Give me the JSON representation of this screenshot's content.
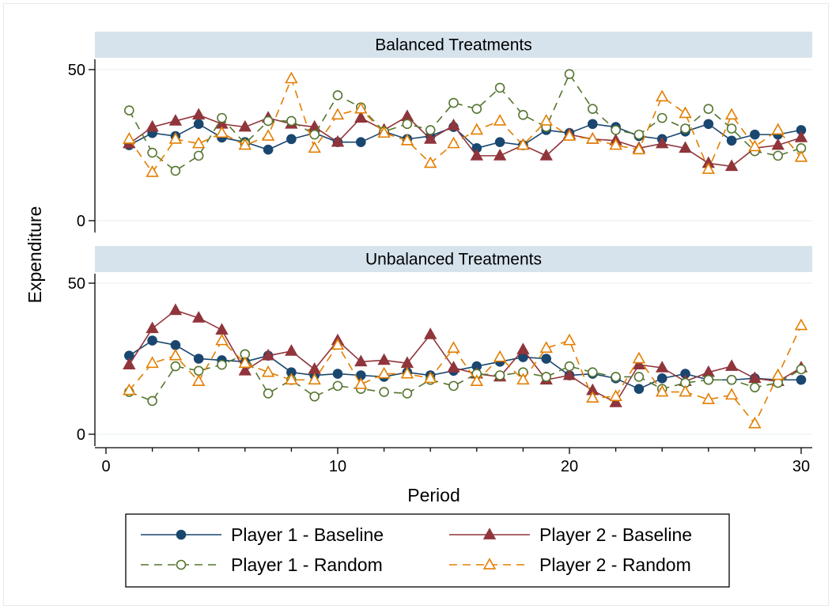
{
  "chart_data": {
    "type": "line",
    "ylabel": "Expenditure",
    "xlabel": "Period",
    "xlim": [
      0,
      30
    ],
    "x_ticks": [
      0,
      10,
      20,
      30
    ],
    "ylim": [
      0,
      50
    ],
    "y_ticks": [
      0,
      50
    ],
    "grid": "horizontal",
    "legend_position": "bottom",
    "series_styles": [
      {
        "name": "Player 1 - Baseline",
        "color": "#1a476f",
        "dash": "solid",
        "marker": "circle-filled"
      },
      {
        "name": "Player 2 - Baseline",
        "color": "#90353b",
        "dash": "solid",
        "marker": "triangle-filled"
      },
      {
        "name": "Player 1 - Random",
        "color": "#55752f",
        "dash": "dashed",
        "marker": "circle-open"
      },
      {
        "name": "Player 2 - Random",
        "color": "#e37e00",
        "dash": "dashed",
        "marker": "triangle-open"
      }
    ],
    "panels": [
      {
        "title": "Balanced Treatments",
        "x": [
          1,
          2,
          3,
          4,
          5,
          6,
          7,
          8,
          9,
          10,
          11,
          12,
          13,
          14,
          15,
          16,
          17,
          18,
          19,
          20,
          21,
          22,
          23,
          24,
          25,
          26,
          27,
          28,
          29,
          30
        ],
        "series": [
          {
            "name": "Player 1 - Baseline",
            "values": [
              25,
              29,
              28,
              32,
              27.5,
              26,
              23.5,
              27,
              29,
              26,
              26,
              29.5,
              27,
              28,
              31,
              24,
              26,
              25,
              30,
              29,
              32,
              31,
              28,
              27,
              29.5,
              32,
              26.5,
              28.5,
              28.5,
              30
            ]
          },
          {
            "name": "Player 2 - Baseline",
            "values": [
              25.5,
              31,
              33,
              35,
              32,
              31,
              34,
              32,
              31,
              26,
              34,
              30,
              34.5,
              27,
              31.5,
              21.5,
              21.5,
              25,
              21.5,
              28.5,
              27,
              26.5,
              24,
              25.5,
              24,
              19,
              18,
              24,
              25,
              27.5
            ]
          },
          {
            "name": "Player 1 - Random",
            "values": [
              36.5,
              22.5,
              16.5,
              21.5,
              34,
              25.5,
              33,
              33,
              28.5,
              41.5,
              37.5,
              29.5,
              32,
              30,
              39,
              37,
              44,
              35,
              31,
              48.5,
              37,
              30,
              28.5,
              34,
              30.5,
              37,
              30.5,
              23,
              21.5,
              24
            ]
          },
          {
            "name": "Player 2 - Random",
            "values": [
              27,
              16,
              27,
              25.5,
              29,
              25,
              28,
              47,
              24,
              35,
              37,
              29,
              26.5,
              19,
              25.5,
              30,
              33,
              25,
              33,
              28,
              27,
              25,
              23.5,
              41,
              35.5,
              17,
              35,
              24.5,
              30,
              21
            ]
          }
        ]
      },
      {
        "title": "Unbalanced Treatments",
        "x": [
          1,
          2,
          3,
          4,
          5,
          6,
          7,
          8,
          9,
          10,
          11,
          12,
          13,
          14,
          15,
          16,
          17,
          18,
          19,
          20,
          21,
          22,
          23,
          24,
          25,
          26,
          27,
          28,
          29,
          30
        ],
        "series": [
          {
            "name": "Player 1 - Baseline",
            "values": [
              26,
              31,
              29.5,
              25,
              24.5,
              24,
              26,
              20.5,
              19.5,
              20,
              19.5,
              19,
              20.5,
              19.5,
              21,
              22.5,
              24,
              25.5,
              25,
              19.5,
              20,
              18.5,
              15,
              18.5,
              20,
              18,
              18,
              18.5,
              18,
              18
            ]
          },
          {
            "name": "Player 2 - Baseline",
            "values": [
              23,
              35,
              41,
              38.5,
              34.5,
              21,
              26,
              27.5,
              21.5,
              31,
              24,
              24.5,
              23.5,
              33,
              22,
              20,
              19,
              28,
              18,
              19.5,
              14.5,
              10.5,
              23,
              22,
              17.5,
              20.5,
              22.5,
              18.5,
              17.5,
              22
            ]
          },
          {
            "name": "Player 1 - Random",
            "values": [
              14,
              11,
              22.5,
              21,
              23,
              26.5,
              13.5,
              18,
              12.5,
              16,
              15,
              14,
              13.5,
              18,
              16,
              20,
              19.5,
              20.5,
              19,
              22.5,
              20.5,
              19,
              19,
              15,
              17,
              18,
              18,
              15.5,
              17,
              21.5
            ]
          },
          {
            "name": "Player 2 - Random",
            "values": [
              14.5,
              23.5,
              26,
              17.5,
              31,
              23.5,
              20.5,
              18,
              18,
              29.5,
              16.5,
              20,
              20,
              18.5,
              28.5,
              17.5,
              25.5,
              18,
              28.5,
              31,
              12,
              12.5,
              25,
              14,
              14,
              11.5,
              13,
              3.5,
              19.5,
              36
            ]
          }
        ]
      }
    ]
  }
}
